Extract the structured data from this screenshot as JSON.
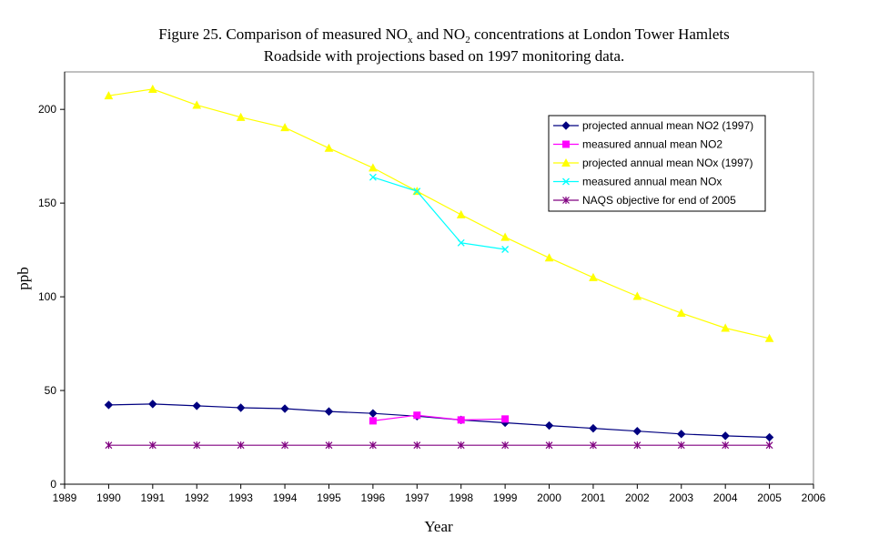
{
  "chart_data": {
    "type": "line",
    "title_line1_parts": [
      "Figure 25. Comparison of measured NO",
      "x",
      " and NO",
      "2",
      " concentrations at London Tower Hamlets"
    ],
    "title_line2": "Roadside with projections based on 1997 monitoring data.",
    "xlabel": "Year",
    "ylabel": "ppb",
    "xlim": [
      1989,
      2006
    ],
    "ylim": [
      0,
      220
    ],
    "x_ticks": [
      1989,
      1990,
      1991,
      1992,
      1993,
      1994,
      1995,
      1996,
      1997,
      1998,
      1999,
      2000,
      2001,
      2002,
      2003,
      2004,
      2005,
      2006
    ],
    "y_ticks": [
      0,
      50,
      100,
      150,
      200
    ],
    "grid": false,
    "legend_position": "top-right",
    "series": [
      {
        "name": "projected annual mean NO2 (1997)",
        "color": "#000080",
        "marker": "diamond",
        "x": [
          1990,
          1991,
          1992,
          1993,
          1994,
          1995,
          1996,
          1997,
          1998,
          1999,
          2000,
          2001,
          2002,
          2003,
          2004,
          2005
        ],
        "y": [
          42.3,
          42.8,
          41.8,
          40.8,
          40.3,
          38.8,
          37.8,
          36.3,
          34.3,
          32.8,
          31.3,
          29.8,
          28.3,
          26.8,
          25.8,
          25.0
        ]
      },
      {
        "name": "measured annual mean NO2",
        "color": "#FF00FF",
        "marker": "square",
        "x": [
          1996,
          1997,
          1998,
          1999
        ],
        "y": [
          33.8,
          36.8,
          34.3,
          34.8
        ]
      },
      {
        "name": "projected annual mean NOx (1997)",
        "color": "#FFFF00",
        "marker": "triangle",
        "x": [
          1990,
          1991,
          1992,
          1993,
          1994,
          1995,
          1996,
          1997,
          1998,
          1999,
          2000,
          2001,
          2002,
          2003,
          2004,
          2005
        ],
        "y": [
          207.3,
          210.8,
          202.3,
          195.8,
          190.3,
          179.3,
          168.8,
          156.3,
          143.8,
          131.8,
          120.8,
          110.3,
          100.3,
          91.3,
          83.3,
          77.8
        ]
      },
      {
        "name": "measured annual mean NOx",
        "color": "#00FFFF",
        "marker": "x",
        "x": [
          1996,
          1997,
          1998,
          1999
        ],
        "y": [
          163.8,
          156.3,
          128.8,
          125.3
        ]
      },
      {
        "name": "NAQS objective for end of 2005",
        "color": "#800080",
        "marker": "star",
        "x": [
          1990,
          1991,
          1992,
          1993,
          1994,
          1995,
          1996,
          1997,
          1998,
          1999,
          2000,
          2001,
          2002,
          2003,
          2004,
          2005
        ],
        "y": [
          20.8,
          20.8,
          20.8,
          20.8,
          20.8,
          20.8,
          20.8,
          20.8,
          20.8,
          20.8,
          20.8,
          20.8,
          20.8,
          20.8,
          20.8,
          20.8
        ]
      }
    ]
  }
}
